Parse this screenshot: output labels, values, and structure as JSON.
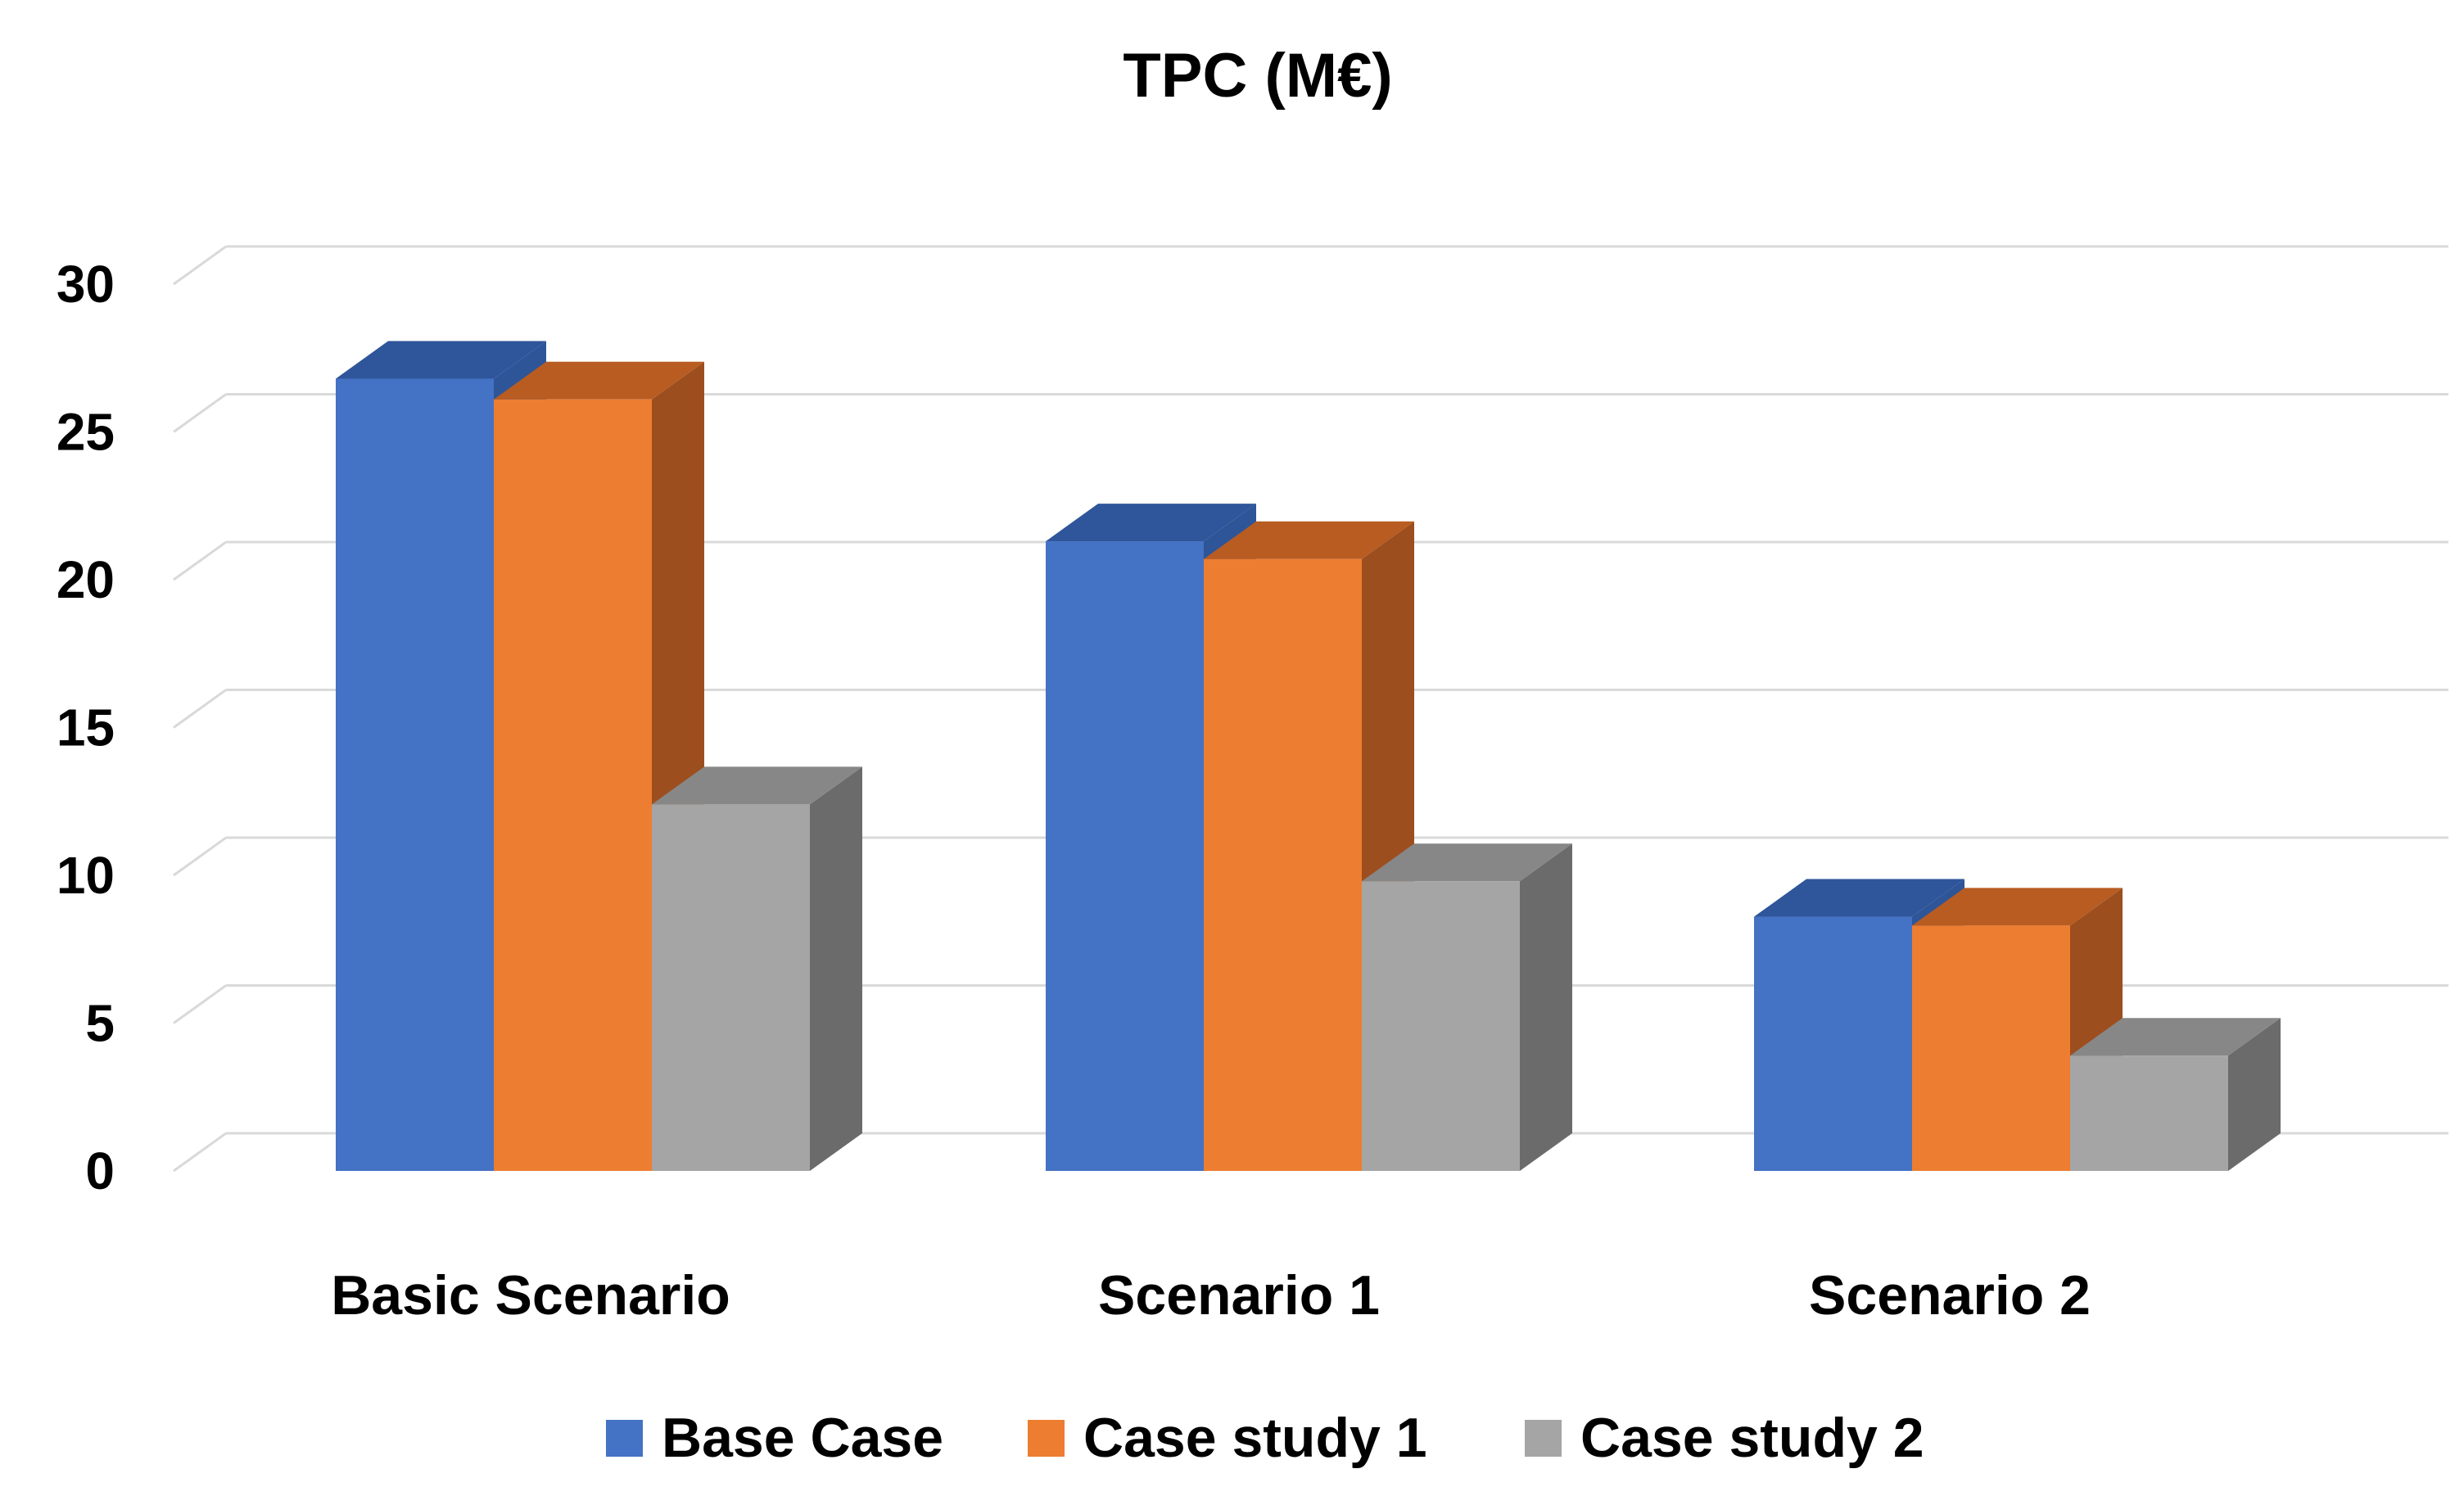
{
  "chart_data": {
    "type": "bar",
    "title": "TPC (M€)",
    "categories": [
      "Basic Scenario",
      "Scenario 1",
      "Scenario 2"
    ],
    "series": [
      {
        "name": "Base Case",
        "values": [
          26.8,
          21.3,
          8.6
        ],
        "color": "#4472c4",
        "side_color": "#2e5597",
        "top_color": "#2f559a"
      },
      {
        "name": "Case study 1",
        "values": [
          26.1,
          20.7,
          8.3
        ],
        "color": "#ed7d31",
        "side_color": "#9d4e1e",
        "top_color": "#b85c22"
      },
      {
        "name": "Case study 2",
        "values": [
          12.4,
          9.8,
          3.9
        ],
        "color": "#a5a5a5",
        "side_color": "#6b6b6b",
        "top_color": "#878787"
      }
    ],
    "y_ticks": [
      0,
      5,
      10,
      15,
      20,
      25,
      30
    ],
    "ylim": [
      0,
      30
    ],
    "xlabel": "",
    "ylabel": "",
    "grid": true,
    "legend_position": "bottom"
  }
}
